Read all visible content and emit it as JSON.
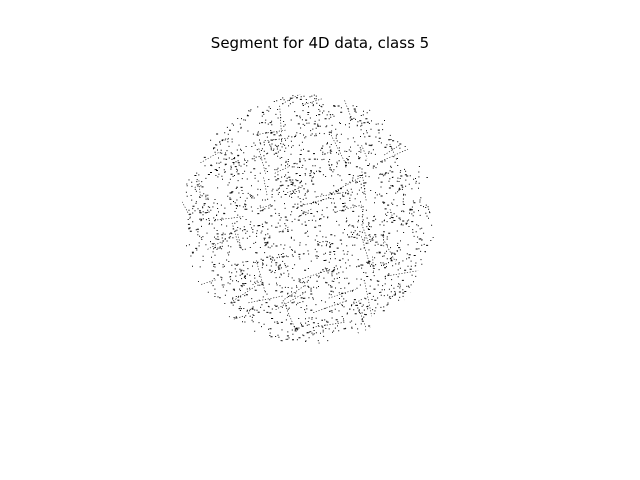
{
  "figure": {
    "title": "Segment for 4D data, class 5"
  },
  "image": {
    "description_name": "segmented-texture-disc",
    "foreground_color": "#000000",
    "background_color": "#ffffff"
  }
}
